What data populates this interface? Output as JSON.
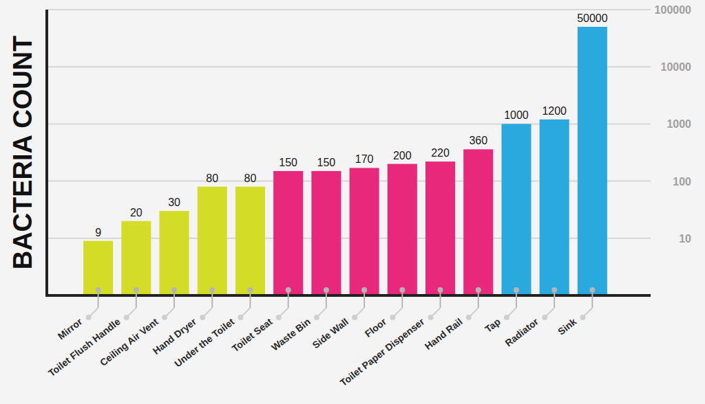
{
  "chart_data": {
    "type": "bar",
    "ylabel": "BACTERIA COUNT",
    "categories": [
      "Mirror",
      "Toilet Flush Handle",
      "Ceiling Air Vent",
      "Hand Dryer",
      "Under the Toilet",
      "Toilet Seat",
      "Waste Bin",
      "Side Wall",
      "Floor",
      "Toilet Paper Dispenser",
      "Hand Rail",
      "Tap",
      "Radiator",
      "Sink"
    ],
    "values": [
      9,
      20,
      30,
      80,
      80,
      150,
      150,
      170,
      200,
      220,
      360,
      1000,
      1200,
      50000
    ],
    "colors": [
      "#d3dc27",
      "#d3dc27",
      "#d3dc27",
      "#d3dc27",
      "#d3dc27",
      "#e8297b",
      "#e8297b",
      "#e8297b",
      "#e8297b",
      "#e8297b",
      "#e8297b",
      "#2aa9df",
      "#2aa9df",
      "#2aa9df"
    ],
    "ylim": [
      1,
      100000
    ],
    "yticks": [
      10,
      100,
      1000,
      10000,
      100000
    ],
    "log": "y",
    "grid": true,
    "data_labels": true
  }
}
